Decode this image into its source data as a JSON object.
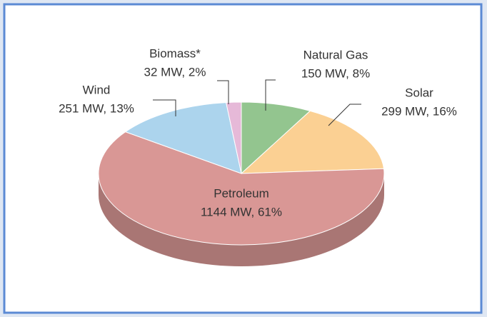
{
  "chart_data": {
    "type": "pie3d",
    "categories": [
      "Natural Gas",
      "Solar",
      "Petroleum",
      "Wind",
      "Biomass*"
    ],
    "values": [
      150,
      299,
      1144,
      251,
      32
    ],
    "value_labels": [
      "150 MW, 8%",
      "299 MW, 16%",
      "1144 MW, 61%",
      "251 MW, 13%",
      "32 MW, 2%"
    ],
    "colors": [
      "#93c58f",
      "#fbd093",
      "#d99795",
      "#acd4ed",
      "#e6b9d8"
    ]
  }
}
